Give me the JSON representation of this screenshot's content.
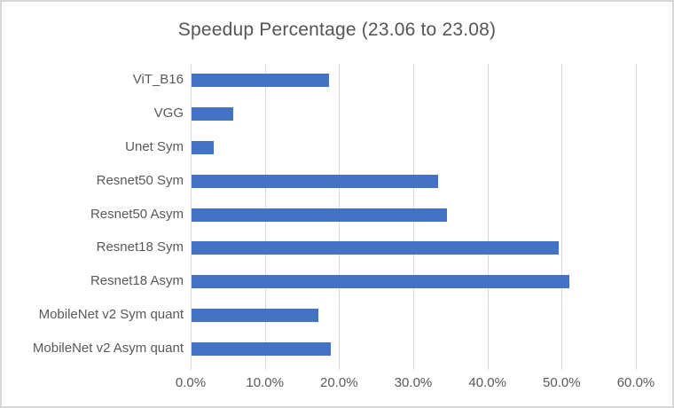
{
  "chart_data": {
    "type": "bar",
    "orientation": "horizontal",
    "title": "Speedup Percentage (23.06 to 23.08)",
    "categories_top_to_bottom": [
      "ViT_B16",
      "VGG",
      "Unet Sym",
      "Resnet50 Sym",
      "Resnet50 Asym",
      "Resnet18 Sym",
      "Resnet18 Asym",
      "MobileNet v2 Sym quant",
      "MobileNet v2 Asym quant"
    ],
    "values_percent": [
      18.5,
      5.6,
      3.0,
      33.2,
      34.4,
      49.5,
      50.9,
      17.1,
      18.8
    ],
    "x_axis": {
      "min": 0,
      "max": 60,
      "step": 10,
      "unit": "%",
      "tick_labels": [
        "0.0%",
        "10.0%",
        "20.0%",
        "30.0%",
        "40.0%",
        "50.0%",
        "60.0%"
      ]
    },
    "grid": true,
    "legend": false,
    "colors": {
      "bar": "#4472C4",
      "gridline": "#D9D9D9",
      "axis_text": "#595959",
      "title_text": "#555555",
      "frame_border": "#D7D7D7"
    }
  }
}
